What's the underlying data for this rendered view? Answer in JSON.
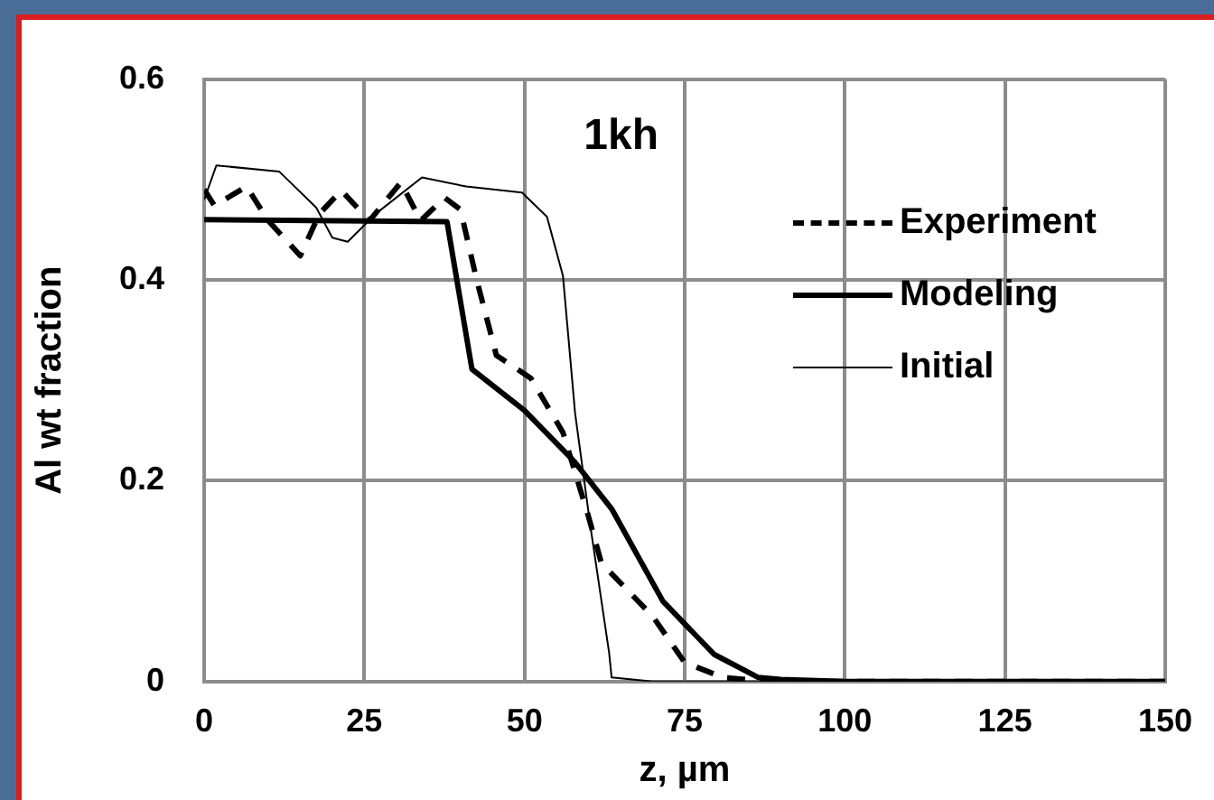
{
  "chart_data": {
    "type": "line",
    "xlabel": "z, µm",
    "ylabel": "Al wt fraction",
    "annotations": [
      "1kh"
    ],
    "xlim": [
      0,
      150
    ],
    "xticks": [
      0,
      25,
      50,
      75,
      100,
      125,
      150
    ],
    "ylim": [
      0,
      0.6
    ],
    "yticks": [
      0,
      0.2,
      0.4,
      0.6
    ],
    "grid": true,
    "legend": "top right",
    "marker": "none",
    "series": [
      {
        "name": "Experiment",
        "color": "#000000",
        "line_style": "dashed",
        "x": [
          0,
          1.6,
          6.6,
          10,
          15,
          18,
          21.4,
          25.8,
          30.7,
          33.8,
          37.5,
          40,
          42.5,
          45.6,
          51,
          56,
          60,
          62,
          70,
          75,
          81,
          88,
          100,
          150
        ],
        "values": [
          0.49,
          0.474,
          0.493,
          0.459,
          0.424,
          0.466,
          0.489,
          0.459,
          0.497,
          0.459,
          0.482,
          0.47,
          0.401,
          0.325,
          0.302,
          0.248,
          0.164,
          0.118,
          0.065,
          0.019,
          0.004,
          0,
          0,
          0
        ]
      },
      {
        "name": "Modeling",
        "color": "#000000",
        "line_style": "solid",
        "x": [
          0,
          37.9,
          41.8,
          50,
          57.8,
          63.6,
          71.6,
          79.6,
          86.5,
          90,
          100,
          150
        ],
        "values": [
          0.46,
          0.458,
          0.311,
          0.27,
          0.219,
          0.172,
          0.08,
          0.027,
          0.004,
          0.002,
          0,
          0
        ]
      },
      {
        "name": "Initial",
        "color": "#000000",
        "line_style": "solid",
        "x": [
          0,
          1.9,
          11.7,
          17.5,
          20,
          22.4,
          26.8,
          34,
          40.9,
          49.6,
          53.5,
          56,
          57.9,
          60.3,
          63.2,
          63.6,
          70,
          150
        ],
        "values": [
          0.48,
          0.514,
          0.508,
          0.472,
          0.442,
          0.438,
          0.466,
          0.502,
          0.493,
          0.487,
          0.463,
          0.404,
          0.267,
          0.154,
          0.029,
          0.004,
          0,
          0
        ]
      }
    ]
  }
}
